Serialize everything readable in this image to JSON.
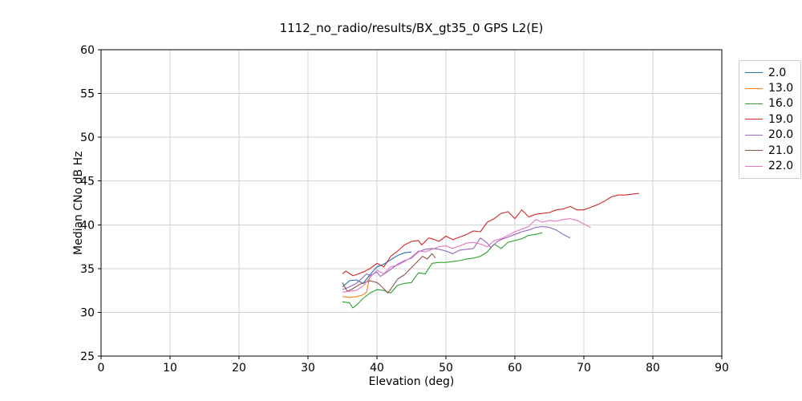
{
  "figure": {
    "background": "#ffffff",
    "grid_color": "#d3d3d3",
    "spine_color": "#000000"
  },
  "chart_data": {
    "type": "line",
    "title": "1112_no_radio/results/BX_gt35_0 GPS L2(E)",
    "xlabel": "Elevation (deg)",
    "ylabel": "Median CNo dB Hz",
    "xlim": [
      0,
      90
    ],
    "ylim": [
      25,
      60
    ],
    "xticks": [
      0,
      10,
      20,
      30,
      40,
      50,
      60,
      70,
      80,
      90
    ],
    "yticks": [
      25,
      30,
      35,
      40,
      45,
      50,
      55,
      60
    ],
    "grid": true,
    "legend_position": "outside upper right",
    "series": [
      {
        "name": "2.0",
        "color": "#1f77b4",
        "points": [
          [
            35,
            32.9
          ],
          [
            36,
            33.6
          ],
          [
            37,
            33.7
          ],
          [
            38,
            33.3
          ],
          [
            39,
            34.3
          ],
          [
            40,
            35.2
          ],
          [
            41,
            35.5
          ],
          [
            42,
            36.0
          ],
          [
            43,
            36.5
          ],
          [
            44,
            36.8
          ],
          [
            45,
            36.9
          ]
        ]
      },
      {
        "name": "13.0",
        "color": "#ff7f0e",
        "points": [
          [
            35,
            31.8
          ],
          [
            36,
            31.7
          ],
          [
            37,
            31.8
          ],
          [
            38,
            32.0
          ],
          [
            38.5,
            32.3
          ],
          [
            39,
            34.2
          ]
        ]
      },
      {
        "name": "16.0",
        "color": "#2ca02c",
        "points": [
          [
            35,
            31.2
          ],
          [
            36,
            31.1
          ],
          [
            36.5,
            30.5
          ],
          [
            37,
            30.8
          ],
          [
            38,
            31.6
          ],
          [
            39,
            32.2
          ],
          [
            40,
            32.6
          ],
          [
            41,
            32.5
          ],
          [
            42,
            32.2
          ],
          [
            43,
            33.1
          ],
          [
            44,
            33.3
          ],
          [
            45,
            33.4
          ],
          [
            46,
            34.5
          ],
          [
            47,
            34.4
          ],
          [
            48,
            35.6
          ],
          [
            49,
            35.7
          ],
          [
            50,
            35.7
          ],
          [
            51,
            35.8
          ],
          [
            52,
            35.9
          ],
          [
            53,
            36.1
          ],
          [
            54,
            36.2
          ],
          [
            55,
            36.4
          ],
          [
            56,
            36.9
          ],
          [
            57,
            37.8
          ],
          [
            58,
            37.3
          ],
          [
            59,
            38.0
          ],
          [
            60,
            38.2
          ],
          [
            61,
            38.4
          ],
          [
            62,
            38.8
          ],
          [
            63,
            38.9
          ],
          [
            64,
            39.1
          ]
        ]
      },
      {
        "name": "19.0",
        "color": "#d62728",
        "points": [
          [
            35,
            34.4
          ],
          [
            35.5,
            34.7
          ],
          [
            36.5,
            34.2
          ],
          [
            37,
            34.3
          ],
          [
            38,
            34.6
          ],
          [
            39,
            35.0
          ],
          [
            40,
            35.6
          ],
          [
            41,
            35.2
          ],
          [
            42,
            36.4
          ],
          [
            43,
            37.0
          ],
          [
            44,
            37.7
          ],
          [
            45,
            38.1
          ],
          [
            46,
            38.2
          ],
          [
            46.5,
            37.7
          ],
          [
            47.5,
            38.5
          ],
          [
            48,
            38.4
          ],
          [
            49,
            38.1
          ],
          [
            50,
            38.7
          ],
          [
            51,
            38.3
          ],
          [
            52,
            38.6
          ],
          [
            53,
            38.9
          ],
          [
            54,
            39.3
          ],
          [
            55,
            39.2
          ],
          [
            56,
            40.3
          ],
          [
            57,
            40.7
          ],
          [
            58,
            41.3
          ],
          [
            59,
            41.5
          ],
          [
            60,
            40.7
          ],
          [
            61,
            41.7
          ],
          [
            62,
            40.9
          ],
          [
            63,
            41.2
          ],
          [
            64,
            41.3
          ],
          [
            65,
            41.4
          ],
          [
            66,
            41.7
          ],
          [
            67,
            41.8
          ],
          [
            68,
            42.1
          ],
          [
            69,
            41.7
          ],
          [
            70,
            41.7
          ],
          [
            71,
            42.0
          ],
          [
            72,
            42.3
          ],
          [
            73,
            42.7
          ],
          [
            74,
            43.2
          ],
          [
            75,
            43.4
          ],
          [
            76,
            43.4
          ],
          [
            77,
            43.5
          ],
          [
            78,
            43.6
          ]
        ]
      },
      {
        "name": "20.0",
        "color": "#9467bd",
        "points": [
          [
            35,
            32.6
          ],
          [
            36,
            32.9
          ],
          [
            37,
            33.3
          ],
          [
            38,
            34.0
          ],
          [
            38.5,
            34.4
          ],
          [
            39,
            34.2
          ],
          [
            40,
            34.6
          ],
          [
            40.5,
            34.1
          ],
          [
            42,
            34.9
          ],
          [
            43,
            35.5
          ],
          [
            44,
            35.9
          ],
          [
            45,
            36.2
          ],
          [
            46,
            36.9
          ],
          [
            47,
            37.2
          ],
          [
            48,
            37.3
          ],
          [
            49,
            37.2
          ],
          [
            50,
            37.0
          ],
          [
            51,
            36.7
          ],
          [
            52,
            37.1
          ],
          [
            53,
            37.2
          ],
          [
            54,
            37.3
          ],
          [
            55,
            38.5
          ],
          [
            56,
            37.9
          ],
          [
            56.5,
            37.4
          ],
          [
            57.5,
            38.1
          ],
          [
            58,
            38.3
          ],
          [
            59,
            38.6
          ],
          [
            60,
            38.9
          ],
          [
            61,
            39.2
          ],
          [
            62,
            39.4
          ],
          [
            63,
            39.7
          ],
          [
            64,
            39.8
          ],
          [
            65,
            39.7
          ],
          [
            66,
            39.4
          ],
          [
            67,
            38.9
          ],
          [
            68,
            38.5
          ]
        ]
      },
      {
        "name": "21.0",
        "color": "#8c564b",
        "points": [
          [
            35,
            33.4
          ],
          [
            35.7,
            32.4
          ],
          [
            36.5,
            32.7
          ],
          [
            37.5,
            33.2
          ],
          [
            39,
            33.6
          ],
          [
            40,
            33.4
          ],
          [
            40.5,
            33.1
          ],
          [
            41.6,
            32.2
          ],
          [
            43,
            33.8
          ],
          [
            44,
            34.3
          ],
          [
            45,
            35.1
          ],
          [
            46,
            35.9
          ],
          [
            46.6,
            36.4
          ],
          [
            47.3,
            36.1
          ],
          [
            48,
            36.7
          ],
          [
            48.5,
            36.2
          ]
        ]
      },
      {
        "name": "22.0",
        "color": "#e377c2",
        "points": [
          [
            35,
            32.3
          ],
          [
            36,
            32.4
          ],
          [
            37,
            32.5
          ],
          [
            38,
            33.0
          ],
          [
            39,
            34.0
          ],
          [
            40,
            34.8
          ],
          [
            41,
            34.4
          ],
          [
            42,
            35.2
          ],
          [
            43,
            35.4
          ],
          [
            44,
            35.8
          ],
          [
            45,
            36.3
          ],
          [
            46,
            37.0
          ],
          [
            47,
            36.9
          ],
          [
            48,
            37.2
          ],
          [
            49,
            37.5
          ],
          [
            50,
            37.6
          ],
          [
            51,
            37.3
          ],
          [
            52,
            37.6
          ],
          [
            53,
            37.9
          ],
          [
            54,
            38.0
          ],
          [
            55,
            37.8
          ],
          [
            56,
            37.5
          ],
          [
            57,
            38.2
          ],
          [
            58,
            38.4
          ],
          [
            59,
            38.8
          ],
          [
            60,
            39.2
          ],
          [
            61,
            39.5
          ],
          [
            62,
            39.8
          ],
          [
            63,
            40.6
          ],
          [
            64,
            40.3
          ],
          [
            65,
            40.5
          ],
          [
            66,
            40.4
          ],
          [
            67,
            40.6
          ],
          [
            68,
            40.7
          ],
          [
            69,
            40.5
          ],
          [
            70,
            40.1
          ],
          [
            71,
            39.7
          ]
        ]
      }
    ]
  }
}
